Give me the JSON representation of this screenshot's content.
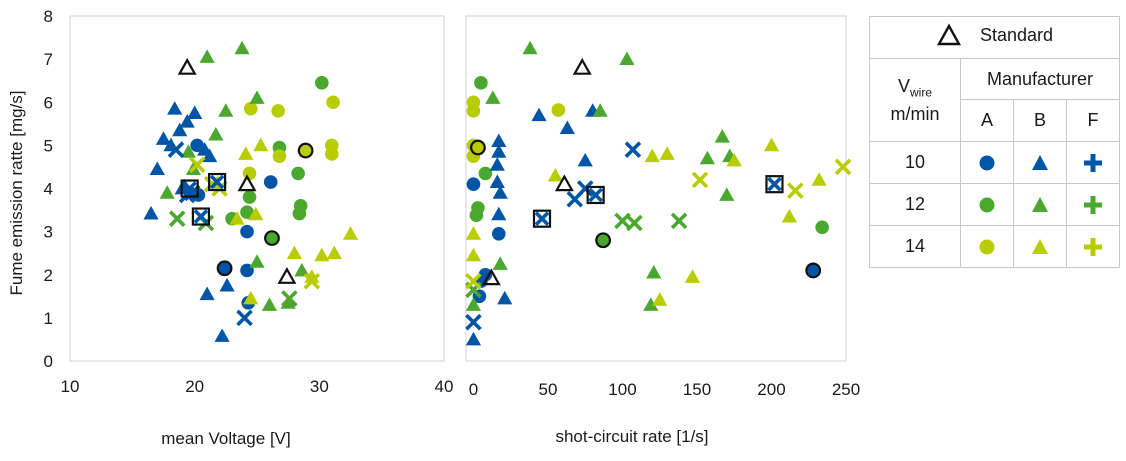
{
  "colors": {
    "A": "#0055a6",
    "B": "#2e9b3c",
    "F": "#b5c900",
    "speed10": "#0055a6",
    "speed12": "#4aa82e",
    "speed14": "#b8cc00"
  },
  "legend": {
    "standard_label": "Standard",
    "vwire_main": "V",
    "vwire_sub": "wire",
    "vwire_unit": "m/min",
    "manufacturer_label": "Manufacturer",
    "manufacturers": [
      "A",
      "B",
      "F"
    ],
    "speeds": [
      "10",
      "12",
      "14"
    ]
  },
  "chart_data": [
    {
      "type": "scatter",
      "xlabel": "mean Voltage [V]",
      "ylabel": "Fume emission ratte [mg/s]",
      "xlim": [
        10,
        40
      ],
      "ylim": [
        0,
        8
      ],
      "xticks": [
        "10",
        "20",
        "30",
        "40"
      ],
      "yticks": [
        "0",
        "1",
        "2",
        "3",
        "4",
        "5",
        "6",
        "7",
        "8"
      ],
      "points": [
        {
          "x": 19.4,
          "y": 6.8,
          "m": "B",
          "s": "std"
        },
        {
          "x": 27.4,
          "y": 1.95,
          "m": "B",
          "s": "std"
        },
        {
          "x": 24.2,
          "y": 4.1,
          "m": "B",
          "s": "std"
        },
        {
          "x": 22.4,
          "y": 2.15,
          "m": "A",
          "s": "std"
        },
        {
          "x": 28.9,
          "y": 4.88,
          "m": "A",
          "s": "std"
        },
        {
          "x": 26.2,
          "y": 2.85,
          "m": "A",
          "s": "std"
        },
        {
          "x": 19.6,
          "y": 4.0,
          "m": "F",
          "s": "std"
        },
        {
          "x": 21.8,
          "y": 4.15,
          "m": "F",
          "s": "std"
        },
        {
          "x": 20.5,
          "y": 3.35,
          "m": "F",
          "s": "std"
        },
        {
          "x": 20.2,
          "y": 5.0,
          "m": "A",
          "s": "10"
        },
        {
          "x": 20.3,
          "y": 3.85,
          "m": "A",
          "s": "10"
        },
        {
          "x": 26.1,
          "y": 4.15,
          "m": "A",
          "s": "10"
        },
        {
          "x": 24.2,
          "y": 3.0,
          "m": "A",
          "s": "10"
        },
        {
          "x": 24.2,
          "y": 2.1,
          "m": "A",
          "s": "10"
        },
        {
          "x": 24.3,
          "y": 1.35,
          "m": "A",
          "s": "10"
        },
        {
          "x": 30.2,
          "y": 6.45,
          "m": "A",
          "s": "12"
        },
        {
          "x": 26.8,
          "y": 4.95,
          "m": "A",
          "s": "12"
        },
        {
          "x": 28.3,
          "y": 4.35,
          "m": "A",
          "s": "12"
        },
        {
          "x": 28.5,
          "y": 3.6,
          "m": "A",
          "s": "12"
        },
        {
          "x": 28.4,
          "y": 3.42,
          "m": "A",
          "s": "12"
        },
        {
          "x": 24.4,
          "y": 3.8,
          "m": "A",
          "s": "12"
        },
        {
          "x": 24.2,
          "y": 3.45,
          "m": "A",
          "s": "12"
        },
        {
          "x": 23.0,
          "y": 3.3,
          "m": "A",
          "s": "12"
        },
        {
          "x": 24.5,
          "y": 5.85,
          "m": "A",
          "s": "14"
        },
        {
          "x": 26.7,
          "y": 5.8,
          "m": "A",
          "s": "14"
        },
        {
          "x": 31.1,
          "y": 6.0,
          "m": "A",
          "s": "14"
        },
        {
          "x": 31.0,
          "y": 5.0,
          "m": "A",
          "s": "14"
        },
        {
          "x": 31.0,
          "y": 4.8,
          "m": "A",
          "s": "14"
        },
        {
          "x": 26.8,
          "y": 4.75,
          "m": "A",
          "s": "14"
        },
        {
          "x": 24.4,
          "y": 4.35,
          "m": "A",
          "s": "14"
        },
        {
          "x": 16.5,
          "y": 3.42,
          "m": "B",
          "s": "10"
        },
        {
          "x": 17.0,
          "y": 4.45,
          "m": "B",
          "s": "10"
        },
        {
          "x": 17.5,
          "y": 5.15,
          "m": "B",
          "s": "10"
        },
        {
          "x": 18.1,
          "y": 5.0,
          "m": "B",
          "s": "10"
        },
        {
          "x": 18.4,
          "y": 5.85,
          "m": "B",
          "s": "10"
        },
        {
          "x": 18.8,
          "y": 5.35,
          "m": "B",
          "s": "10"
        },
        {
          "x": 19.4,
          "y": 5.55,
          "m": "B",
          "s": "10"
        },
        {
          "x": 20.0,
          "y": 5.75,
          "m": "B",
          "s": "10"
        },
        {
          "x": 20.8,
          "y": 4.9,
          "m": "B",
          "s": "10"
        },
        {
          "x": 21.2,
          "y": 4.75,
          "m": "B",
          "s": "10"
        },
        {
          "x": 19.2,
          "y": 4.05,
          "m": "B",
          "s": "10"
        },
        {
          "x": 21.0,
          "y": 1.55,
          "m": "B",
          "s": "10"
        },
        {
          "x": 22.6,
          "y": 1.75,
          "m": "B",
          "s": "10"
        },
        {
          "x": 22.2,
          "y": 0.58,
          "m": "B",
          "s": "10"
        },
        {
          "x": 19.0,
          "y": 4.0,
          "m": "B",
          "s": "10"
        },
        {
          "x": 21.0,
          "y": 7.05,
          "m": "B",
          "s": "12"
        },
        {
          "x": 23.8,
          "y": 7.25,
          "m": "B",
          "s": "12"
        },
        {
          "x": 25.0,
          "y": 6.1,
          "m": "B",
          "s": "12"
        },
        {
          "x": 22.5,
          "y": 5.8,
          "m": "B",
          "s": "12"
        },
        {
          "x": 21.7,
          "y": 5.25,
          "m": "B",
          "s": "12"
        },
        {
          "x": 19.5,
          "y": 4.85,
          "m": "B",
          "s": "12"
        },
        {
          "x": 17.8,
          "y": 3.9,
          "m": "B",
          "s": "12"
        },
        {
          "x": 19.9,
          "y": 4.45,
          "m": "B",
          "s": "12"
        },
        {
          "x": 25.0,
          "y": 2.3,
          "m": "B",
          "s": "12"
        },
        {
          "x": 26.0,
          "y": 1.3,
          "m": "B",
          "s": "12"
        },
        {
          "x": 27.5,
          "y": 1.35,
          "m": "B",
          "s": "12"
        },
        {
          "x": 28.6,
          "y": 2.1,
          "m": "B",
          "s": "12"
        },
        {
          "x": 24.1,
          "y": 4.8,
          "m": "B",
          "s": "14"
        },
        {
          "x": 25.3,
          "y": 5.0,
          "m": "B",
          "s": "14"
        },
        {
          "x": 24.9,
          "y": 3.4,
          "m": "B",
          "s": "14"
        },
        {
          "x": 28.0,
          "y": 2.5,
          "m": "B",
          "s": "14"
        },
        {
          "x": 29.4,
          "y": 1.95,
          "m": "B",
          "s": "14"
        },
        {
          "x": 30.2,
          "y": 2.45,
          "m": "B",
          "s": "14"
        },
        {
          "x": 31.2,
          "y": 2.5,
          "m": "B",
          "s": "14"
        },
        {
          "x": 32.5,
          "y": 2.95,
          "m": "B",
          "s": "14"
        },
        {
          "x": 24.5,
          "y": 1.45,
          "m": "B",
          "s": "14"
        },
        {
          "x": 23.4,
          "y": 3.3,
          "m": "B",
          "s": "14"
        },
        {
          "x": 18.5,
          "y": 4.9,
          "m": "F",
          "s": "10"
        },
        {
          "x": 19.4,
          "y": 3.85,
          "m": "F",
          "s": "10"
        },
        {
          "x": 19.8,
          "y": 3.9,
          "m": "F",
          "s": "10"
        },
        {
          "x": 24.0,
          "y": 1.0,
          "m": "F",
          "s": "10"
        },
        {
          "x": 18.6,
          "y": 3.3,
          "m": "F",
          "s": "12"
        },
        {
          "x": 20.9,
          "y": 3.2,
          "m": "F",
          "s": "12"
        },
        {
          "x": 27.6,
          "y": 1.45,
          "m": "F",
          "s": "12"
        },
        {
          "x": 20.2,
          "y": 4.55,
          "m": "F",
          "s": "14"
        },
        {
          "x": 22.0,
          "y": 4.0,
          "m": "F",
          "s": "14"
        },
        {
          "x": 29.4,
          "y": 1.85,
          "m": "F",
          "s": "14"
        },
        {
          "x": 21.4,
          "y": 4.1,
          "m": "F",
          "s": "14"
        }
      ]
    },
    {
      "type": "scatter",
      "xlabel": "shot-circuit rate [1/s]",
      "ylabel": "",
      "xlim": [
        -5,
        250
      ],
      "ylim": [
        0,
        8
      ],
      "xticks": [
        "0",
        "50",
        "100",
        "150",
        "200",
        "250"
      ],
      "yticks": [],
      "points": [
        {
          "x": 73,
          "y": 6.8,
          "m": "B",
          "s": "std"
        },
        {
          "x": 61,
          "y": 4.1,
          "m": "B",
          "s": "std"
        },
        {
          "x": 12,
          "y": 1.92,
          "m": "B",
          "s": "std"
        },
        {
          "x": 3,
          "y": 4.95,
          "m": "A",
          "s": "std"
        },
        {
          "x": 87,
          "y": 2.8,
          "m": "A",
          "s": "std"
        },
        {
          "x": 228,
          "y": 2.1,
          "m": "A",
          "s": "std"
        },
        {
          "x": 46,
          "y": 3.3,
          "m": "F",
          "s": "std"
        },
        {
          "x": 82,
          "y": 3.85,
          "m": "F",
          "s": "std"
        },
        {
          "x": 202,
          "y": 4.1,
          "m": "F",
          "s": "std"
        },
        {
          "x": 0,
          "y": 4.1,
          "m": "A",
          "s": "10"
        },
        {
          "x": 17,
          "y": 2.95,
          "m": "A",
          "s": "10"
        },
        {
          "x": 8,
          "y": 2.0,
          "m": "A",
          "s": "10"
        },
        {
          "x": 5,
          "y": 1.85,
          "m": "A",
          "s": "10"
        },
        {
          "x": 4,
          "y": 1.5,
          "m": "A",
          "s": "10"
        },
        {
          "x": 5,
          "y": 6.45,
          "m": "A",
          "s": "12"
        },
        {
          "x": 8,
          "y": 4.35,
          "m": "A",
          "s": "12"
        },
        {
          "x": 3,
          "y": 3.55,
          "m": "A",
          "s": "12"
        },
        {
          "x": 2,
          "y": 3.38,
          "m": "A",
          "s": "12"
        },
        {
          "x": 234,
          "y": 3.1,
          "m": "A",
          "s": "12"
        },
        {
          "x": 0,
          "y": 6.0,
          "m": "A",
          "s": "14"
        },
        {
          "x": 0,
          "y": 5.8,
          "m": "A",
          "s": "14"
        },
        {
          "x": 57,
          "y": 5.82,
          "m": "A",
          "s": "14"
        },
        {
          "x": 0,
          "y": 5.0,
          "m": "A",
          "s": "14"
        },
        {
          "x": 0,
          "y": 4.75,
          "m": "A",
          "s": "14"
        },
        {
          "x": 44,
          "y": 5.7,
          "m": "B",
          "s": "10"
        },
        {
          "x": 17,
          "y": 5.1,
          "m": "B",
          "s": "10"
        },
        {
          "x": 17,
          "y": 4.85,
          "m": "B",
          "s": "10"
        },
        {
          "x": 16,
          "y": 4.55,
          "m": "B",
          "s": "10"
        },
        {
          "x": 16,
          "y": 4.15,
          "m": "B",
          "s": "10"
        },
        {
          "x": 18,
          "y": 3.9,
          "m": "B",
          "s": "10"
        },
        {
          "x": 17,
          "y": 3.4,
          "m": "B",
          "s": "10"
        },
        {
          "x": 63,
          "y": 5.4,
          "m": "B",
          "s": "10"
        },
        {
          "x": 80,
          "y": 5.8,
          "m": "B",
          "s": "10"
        },
        {
          "x": 75,
          "y": 4.65,
          "m": "B",
          "s": "10"
        },
        {
          "x": 21,
          "y": 1.45,
          "m": "B",
          "s": "10"
        },
        {
          "x": 0,
          "y": 0.5,
          "m": "B",
          "s": "10"
        },
        {
          "x": 38,
          "y": 7.25,
          "m": "B",
          "s": "12"
        },
        {
          "x": 103,
          "y": 7.0,
          "m": "B",
          "s": "12"
        },
        {
          "x": 13,
          "y": 6.1,
          "m": "B",
          "s": "12"
        },
        {
          "x": 85,
          "y": 5.8,
          "m": "B",
          "s": "12"
        },
        {
          "x": 167,
          "y": 5.2,
          "m": "B",
          "s": "12"
        },
        {
          "x": 157,
          "y": 4.7,
          "m": "B",
          "s": "12"
        },
        {
          "x": 172,
          "y": 4.75,
          "m": "B",
          "s": "12"
        },
        {
          "x": 170,
          "y": 3.85,
          "m": "B",
          "s": "12"
        },
        {
          "x": 18,
          "y": 2.25,
          "m": "B",
          "s": "12"
        },
        {
          "x": 121,
          "y": 2.05,
          "m": "B",
          "s": "12"
        },
        {
          "x": 119,
          "y": 1.3,
          "m": "B",
          "s": "12"
        },
        {
          "x": 0,
          "y": 1.3,
          "m": "B",
          "s": "12"
        },
        {
          "x": 200,
          "y": 5.0,
          "m": "B",
          "s": "14"
        },
        {
          "x": 120,
          "y": 4.75,
          "m": "B",
          "s": "14"
        },
        {
          "x": 130,
          "y": 4.8,
          "m": "B",
          "s": "14"
        },
        {
          "x": 175,
          "y": 4.65,
          "m": "B",
          "s": "14"
        },
        {
          "x": 232,
          "y": 4.2,
          "m": "B",
          "s": "14"
        },
        {
          "x": 55,
          "y": 4.3,
          "m": "B",
          "s": "14"
        },
        {
          "x": 212,
          "y": 3.35,
          "m": "B",
          "s": "14"
        },
        {
          "x": 147,
          "y": 1.95,
          "m": "B",
          "s": "14"
        },
        {
          "x": 125,
          "y": 1.42,
          "m": "B",
          "s": "14"
        },
        {
          "x": 0,
          "y": 2.95,
          "m": "B",
          "s": "14"
        },
        {
          "x": 0,
          "y": 2.45,
          "m": "B",
          "s": "14"
        },
        {
          "x": 107,
          "y": 4.9,
          "m": "F",
          "s": "10"
        },
        {
          "x": 75,
          "y": 4.0,
          "m": "F",
          "s": "10"
        },
        {
          "x": 68,
          "y": 3.75,
          "m": "F",
          "s": "10"
        },
        {
          "x": 0,
          "y": 0.9,
          "m": "F",
          "s": "10"
        },
        {
          "x": 100,
          "y": 3.25,
          "m": "F",
          "s": "12"
        },
        {
          "x": 108,
          "y": 3.2,
          "m": "F",
          "s": "12"
        },
        {
          "x": 138,
          "y": 3.25,
          "m": "F",
          "s": "12"
        },
        {
          "x": 0,
          "y": 1.65,
          "m": "F",
          "s": "12"
        },
        {
          "x": 248,
          "y": 4.5,
          "m": "F",
          "s": "14"
        },
        {
          "x": 152,
          "y": 4.2,
          "m": "F",
          "s": "14"
        },
        {
          "x": 216,
          "y": 3.95,
          "m": "F",
          "s": "14"
        },
        {
          "x": 0,
          "y": 1.85,
          "m": "F",
          "s": "14"
        }
      ]
    }
  ]
}
